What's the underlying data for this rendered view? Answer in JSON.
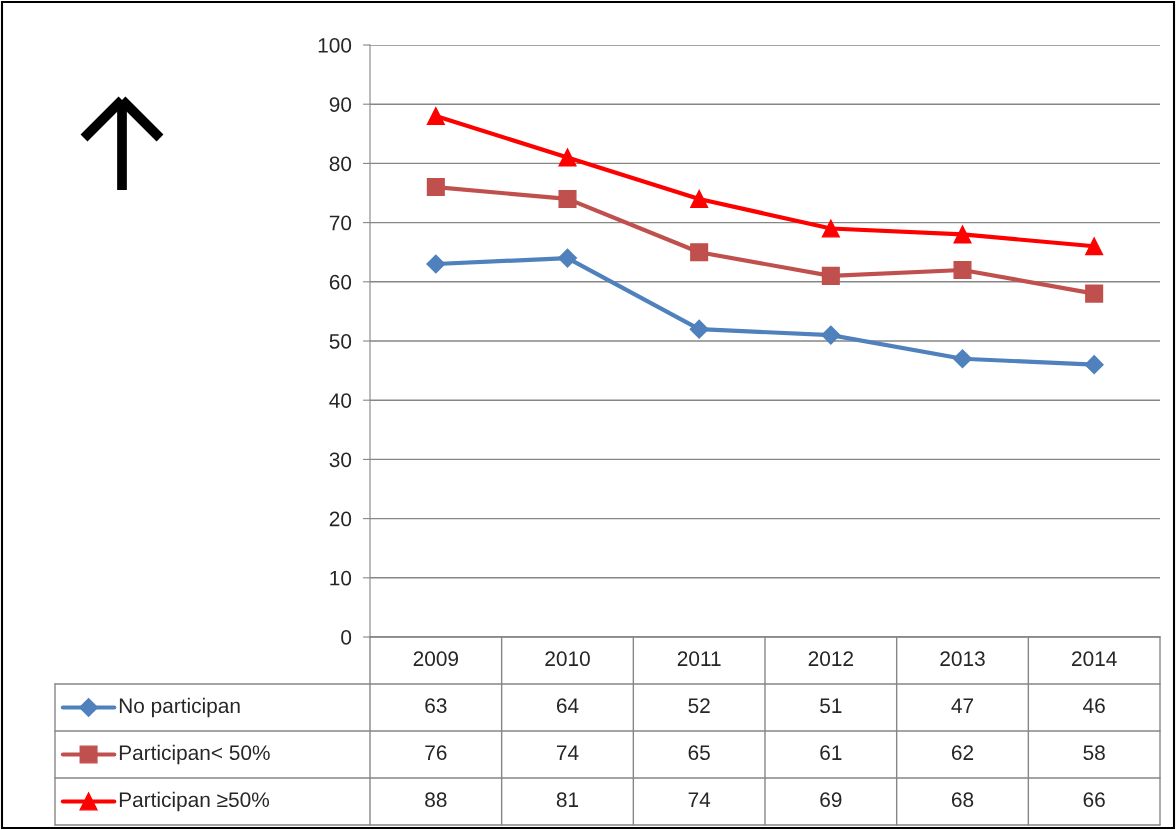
{
  "chart_data": {
    "type": "line",
    "categories": [
      "2009",
      "2010",
      "2011",
      "2012",
      "2013",
      "2014"
    ],
    "series": [
      {
        "name": "No participan",
        "color": "#4f81bd",
        "marker": "diamond",
        "values": [
          63,
          64,
          52,
          51,
          47,
          46
        ]
      },
      {
        "name": "Participan< 50%",
        "color": "#c0504d",
        "marker": "square",
        "values": [
          76,
          74,
          65,
          61,
          62,
          58
        ]
      },
      {
        "name": "Participan ≥50%",
        "color": "#ff0000",
        "marker": "triangle",
        "values": [
          88,
          81,
          74,
          69,
          68,
          66
        ]
      }
    ],
    "ylim": [
      0,
      100
    ],
    "yticks": [
      0,
      10,
      20,
      30,
      40,
      50,
      60,
      70,
      80,
      90,
      100
    ],
    "grid": "y",
    "legend": "bottom",
    "data_labels": true,
    "line_style": "solid"
  }
}
